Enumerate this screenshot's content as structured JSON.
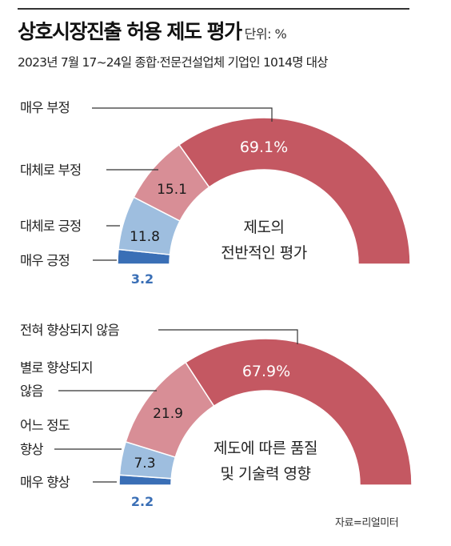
{
  "title": "상호시장진출 허용 제도 평가",
  "unit": "단위: %",
  "subtitle": "2023년 7월 17~24일 종합·전문건설업체 기업인 1014명 대상",
  "source": "자료=리얼미터",
  "colors": {
    "deep_red": "#c45862",
    "light_red": "#d88e96",
    "light_blue": "#9ebedf",
    "deep_blue": "#3a6fb6"
  },
  "chart_data": [
    {
      "type": "pie",
      "style": "half-donut",
      "center_label": [
        "제도의",
        "전반적인 평가"
      ],
      "categories": [
        "매우 부정",
        "대체로 부정",
        "대체로 긍정",
        "매우 긍정"
      ],
      "values": [
        69.1,
        15.1,
        11.8,
        3.2
      ],
      "value_labels": [
        "69.1%",
        "15.1",
        "11.8",
        "3.2"
      ]
    },
    {
      "type": "pie",
      "style": "half-donut",
      "center_label": [
        "제도에 따른 품질",
        "및 기술력 영향"
      ],
      "categories": [
        "전혀 향상되지 않음",
        "별로 향상되지 않음",
        "어느 정도 향상",
        "매우 향상"
      ],
      "values": [
        67.9,
        21.9,
        7.3,
        2.2
      ],
      "value_labels": [
        "67.9%",
        "21.9",
        "7.3",
        "2.2"
      ]
    }
  ],
  "labels": {
    "c1_0": "매우 부정",
    "c1_1": "대체로 부정",
    "c1_2": "대체로 긍정",
    "c1_3": "매우 긍정",
    "c2_0": "전혀 향상되지 않음",
    "c2_1a": "별로 향상되지",
    "c2_1b": "않음",
    "c2_2a": "어느 정도",
    "c2_2b": "향상",
    "c2_3": "매우 향상"
  }
}
